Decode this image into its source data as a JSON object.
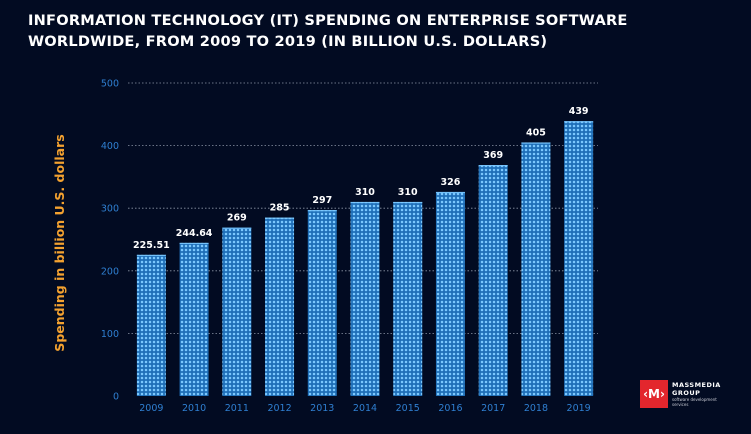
{
  "chart_data": {
    "type": "bar",
    "title_lines": [
      "INFORMATION TECHNOLOGY (IT) SPENDING ON ENTERPRISE SOFTWARE",
      "WORLDWIDE, FROM 2009 TO 2019 (IN BILLION U.S. DOLLARS)"
    ],
    "ylabel": "Spending in billion U.S. dollars",
    "xlabel": "",
    "categories": [
      "2009",
      "2010",
      "2011",
      "2012",
      "2013",
      "2014",
      "2015",
      "2016",
      "2017",
      "2018",
      "2019"
    ],
    "values": [
      225.51,
      244.64,
      269,
      285,
      297,
      310,
      310,
      326,
      369,
      405,
      439
    ],
    "value_labels": [
      "225.51",
      "244.64",
      "269",
      "285",
      "297",
      "310",
      "310",
      "326",
      "369",
      "405",
      "439"
    ],
    "ylim": [
      0,
      500
    ],
    "yticks": [
      "0",
      "100",
      "200",
      "300",
      "400",
      "500"
    ],
    "grid": true,
    "legend": "none",
    "colors": {
      "background": "#020b22",
      "bar": "#2e97e6",
      "bar_dots": "#7cc9ff",
      "axis_text": "#2f7fd1",
      "ylabel": "#f4a230",
      "value_label": "#ffffff",
      "grid": "#b9c3d3"
    }
  },
  "logo": {
    "mark": "‹M›",
    "name_line1": "MASSMEDIA",
    "name_line2": "GROUP",
    "tagline_line1": "software development",
    "tagline_line2": "services"
  }
}
